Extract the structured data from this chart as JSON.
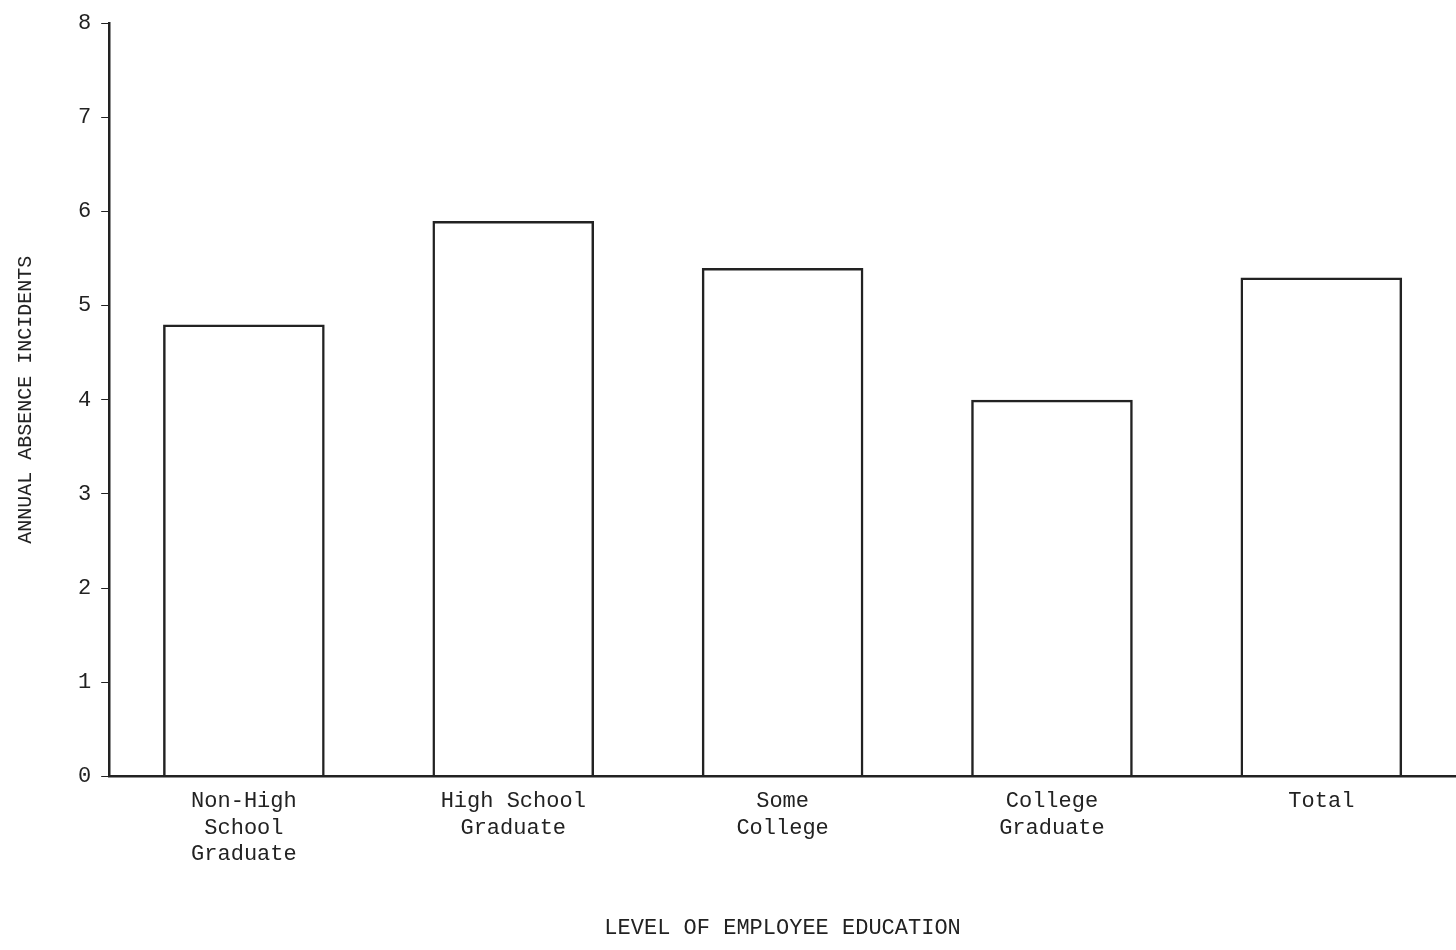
{
  "chart_data": {
    "type": "bar",
    "xlabel": "LEVEL OF EMPLOYEE EDUCATION",
    "ylabel": "ANNUAL ABSENCE INCIDENTS",
    "categories": [
      "Non-High School Graduate",
      "High School Graduate",
      "Some College",
      "College Graduate",
      "Total"
    ],
    "values": [
      4.8,
      5.9,
      5.4,
      4.0,
      5.3
    ],
    "color": "#222222",
    "ylim": [
      0,
      8
    ],
    "yticks": [
      0,
      1,
      2,
      3,
      4,
      5,
      6,
      7,
      8
    ],
    "grid": false,
    "legend": false
  }
}
